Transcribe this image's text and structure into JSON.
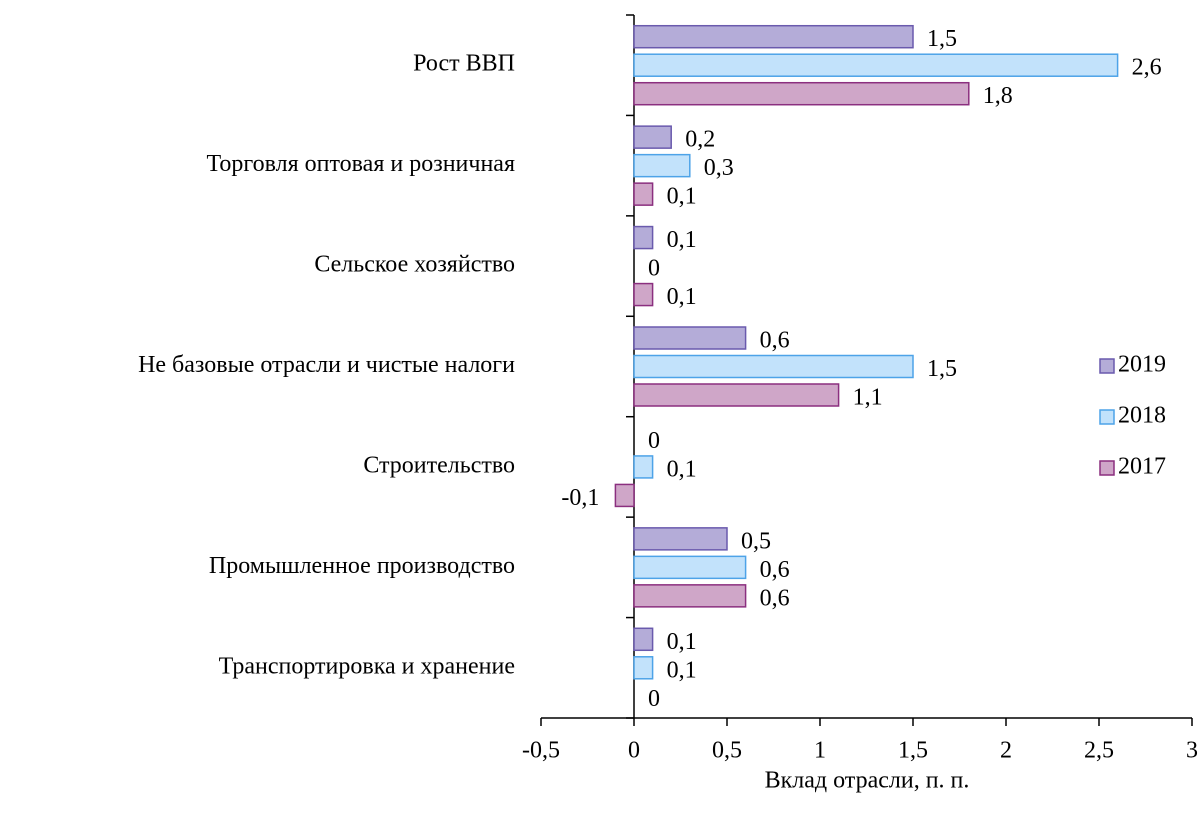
{
  "chart_data": {
    "type": "hbar",
    "categories": [
      "Рост ВВП",
      "Торговля оптовая и розничная",
      "Сельское хозяйство",
      "Не базовые отрасли и чистые налоги",
      "Строительство",
      "Промышленное производство",
      "Транспортировка и хранение"
    ],
    "series": [
      {
        "name": "2019",
        "color": "#b4acd8",
        "edge": "#6a5aad",
        "values": [
          1.5,
          0.2,
          0.1,
          0.6,
          0,
          0.5,
          0.1
        ],
        "value_labels": [
          "1,5",
          "0,2",
          "0,1",
          "0,6",
          "0",
          "0,5",
          "0,1"
        ]
      },
      {
        "name": "2018",
        "color": "#c2e2fb",
        "edge": "#4da3e8",
        "values": [
          2.6,
          0.3,
          0,
          1.5,
          0.1,
          0.6,
          0.1
        ],
        "value_labels": [
          "2,6",
          "0,3",
          "0",
          "1,5",
          "0,1",
          "0,6",
          "0,1"
        ]
      },
      {
        "name": "2017",
        "color": "#cfa6c8",
        "edge": "#8b2f7f",
        "values": [
          1.8,
          0.1,
          0.1,
          1.1,
          -0.1,
          0.6,
          0
        ],
        "value_labels": [
          "1,8",
          "0,1",
          "0,1",
          "1,1",
          "-0,1",
          "0,6",
          "0"
        ]
      }
    ],
    "xlabel": "Вклад отрасли, п. п.",
    "xlim": [
      -0.5,
      3
    ],
    "xticks": [
      {
        "value": -0.5,
        "label": "-0,5"
      },
      0,
      {
        "value": 0.5,
        "label": "0,5"
      },
      1,
      {
        "value": 1.5,
        "label": "1,5"
      },
      2,
      {
        "value": 2.5,
        "label": "2,5"
      },
      3
    ],
    "legend": "right",
    "grid": false
  }
}
